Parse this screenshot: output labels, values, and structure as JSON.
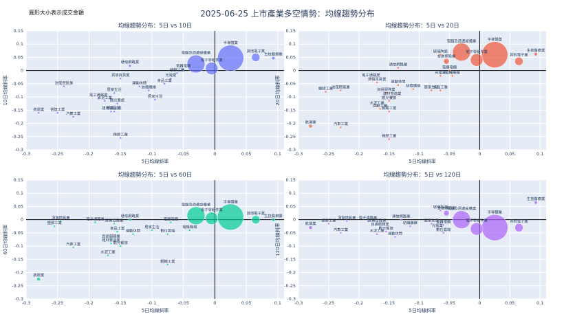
{
  "page": {
    "title": "2025-06-25 上市產業多空情勢：均線趨勢分布",
    "size_note": "圓形大小表示成交金額"
  },
  "colors": {
    "s10": "#636efa",
    "s20": "#ef553b",
    "s60": "#00cc96",
    "s120": "#ab63fa",
    "plot_bg": "#e5ecf6",
    "grid": "#ffffff",
    "axis_line": "#000000"
  },
  "chart_data": [
    {
      "type": "scatter",
      "title": "均線趨勢分布：5日 vs 10日",
      "xlabel": "5日均線斜率",
      "ylabel": "10日均線斜率",
      "xlim": [
        -0.3,
        0.11
      ],
      "ylim": [
        -0.3,
        0.15
      ],
      "xticks": [
        -0.3,
        -0.25,
        -0.2,
        -0.15,
        -0.1,
        -0.05,
        0,
        0.05,
        0.1
      ],
      "yticks": [
        -0.3,
        -0.25,
        -0.2,
        -0.15,
        -0.1,
        -0.05,
        0,
        0.05,
        0.1,
        0.15
      ],
      "color_key": "s10",
      "points": [
        {
          "x": 0.093,
          "y": 0.047,
          "r": 2.4,
          "label": "生技醫療業"
        },
        {
          "x": 0.065,
          "y": 0.05,
          "r": 6,
          "label": "其他電子業"
        },
        {
          "x": 0.025,
          "y": 0.047,
          "r": 19,
          "label": "半導體業"
        },
        {
          "x": -0.03,
          "y": 0.025,
          "r": 13,
          "label": "電腦及週邊設備業"
        },
        {
          "x": -0.005,
          "y": 0.008,
          "r": 9,
          "label": "電子零組件業"
        },
        {
          "x": -0.135,
          "y": 0.018,
          "r": 2,
          "label": "通信網路業"
        },
        {
          "x": -0.15,
          "y": -0.03,
          "r": 1.6,
          "label": "貿易百貨業"
        },
        {
          "x": -0.05,
          "y": 0.005,
          "r": 1.6,
          "label": "電器電纜"
        },
        {
          "x": -0.06,
          "y": -0.01,
          "r": 1.6,
          "label": "塑膠工業"
        },
        {
          "x": -0.07,
          "y": -0.03,
          "r": 1.6,
          "label": "光電業"
        },
        {
          "x": -0.08,
          "y": -0.05,
          "r": 1.6,
          "label": "食品工業"
        },
        {
          "x": -0.12,
          "y": -0.06,
          "r": 1.6,
          "label": "運動休閒"
        },
        {
          "x": -0.105,
          "y": -0.075,
          "r": 1.6,
          "label": "紡織纖維"
        },
        {
          "x": -0.24,
          "y": -0.06,
          "r": 1.6,
          "label": "油電燃氣業"
        },
        {
          "x": -0.16,
          "y": -0.085,
          "r": 1.6,
          "label": "居家生活"
        },
        {
          "x": -0.185,
          "y": -0.105,
          "r": 1.6,
          "label": "電子通路業"
        },
        {
          "x": -0.175,
          "y": -0.115,
          "r": 1.6,
          "label": "水泥工業"
        },
        {
          "x": -0.155,
          "y": -0.125,
          "r": 1.6,
          "label": "觀光餐旅"
        },
        {
          "x": -0.095,
          "y": -0.11,
          "r": 1.6,
          "label": "居家生活"
        },
        {
          "x": -0.16,
          "y": -0.155,
          "r": 1.6,
          "label": "鋼鐵工業"
        },
        {
          "x": -0.165,
          "y": -0.155,
          "r": 1.6,
          "label": "建材營造業"
        },
        {
          "x": -0.28,
          "y": -0.16,
          "r": 1.6,
          "label": "航運業"
        },
        {
          "x": -0.25,
          "y": -0.16,
          "r": 1.6,
          "label": "營建工業"
        },
        {
          "x": -0.225,
          "y": -0.175,
          "r": 1.6,
          "label": "汽車工業"
        },
        {
          "x": -0.15,
          "y": -0.255,
          "r": 1.6,
          "label": "橡膠工業"
        }
      ]
    },
    {
      "type": "scatter",
      "title": "均線趨勢分布：5日 vs 20日",
      "xlabel": "5日均線斜率",
      "ylabel": "20日均線斜率",
      "xlim": [
        -0.3,
        0.11
      ],
      "ylim": [
        -0.3,
        0.15
      ],
      "xticks": [
        -0.3,
        -0.25,
        -0.2,
        -0.15,
        -0.1,
        -0.05,
        0,
        0.05,
        0.1
      ],
      "yticks": [
        -0.3,
        -0.25,
        -0.2,
        -0.15,
        -0.1,
        -0.05,
        0,
        0.05,
        0.1,
        0.15
      ],
      "color_key": "s20",
      "points": [
        {
          "x": 0.093,
          "y": 0.062,
          "r": 2.4,
          "label": "生技醫療業"
        },
        {
          "x": 0.065,
          "y": 0.035,
          "r": 6,
          "label": "其他電子業"
        },
        {
          "x": 0.025,
          "y": 0.06,
          "r": 19,
          "label": "半導體業"
        },
        {
          "x": -0.03,
          "y": 0.07,
          "r": 13,
          "label": "電腦及週邊設備業"
        },
        {
          "x": -0.005,
          "y": 0.04,
          "r": 9,
          "label": "電子零組件業"
        },
        {
          "x": -0.055,
          "y": 0.035,
          "r": 4,
          "label": "金融保險業"
        },
        {
          "x": -0.065,
          "y": 0.06,
          "r": 1.6,
          "label": "玻璃陶瓷"
        },
        {
          "x": -0.135,
          "y": 0.01,
          "r": 1.6,
          "label": "通信網路業"
        },
        {
          "x": -0.05,
          "y": 0.0,
          "r": 1.6,
          "label": "電器電纜"
        },
        {
          "x": -0.045,
          "y": -0.02,
          "r": 1.6,
          "label": "電機機械"
        },
        {
          "x": -0.065,
          "y": -0.02,
          "r": 1.6,
          "label": "光電業"
        },
        {
          "x": -0.18,
          "y": -0.03,
          "r": 1.6,
          "label": "電子通路業"
        },
        {
          "x": -0.17,
          "y": -0.045,
          "r": 1.6,
          "label": "貿易百貨業"
        },
        {
          "x": -0.135,
          "y": -0.055,
          "r": 1.6,
          "label": "運動休閒"
        },
        {
          "x": -0.11,
          "y": -0.07,
          "r": 1.6,
          "label": "紡織纖維"
        },
        {
          "x": -0.08,
          "y": -0.075,
          "r": 1.6,
          "label": "居家生活"
        },
        {
          "x": -0.065,
          "y": -0.075,
          "r": 1.6,
          "label": "食品工業"
        },
        {
          "x": -0.23,
          "y": -0.075,
          "r": 1.6,
          "label": "油電燃氣業"
        },
        {
          "x": -0.255,
          "y": -0.08,
          "r": 1.6,
          "label": "塑膠工業"
        },
        {
          "x": -0.155,
          "y": -0.085,
          "r": 1.6,
          "label": "資訊服務業"
        },
        {
          "x": -0.145,
          "y": -0.1,
          "r": 1.6,
          "label": "建材營造業"
        },
        {
          "x": -0.15,
          "y": -0.115,
          "r": 1.6,
          "label": "觀光餐旅"
        },
        {
          "x": -0.17,
          "y": -0.135,
          "r": 1.6,
          "label": "水泥工業"
        },
        {
          "x": -0.165,
          "y": -0.145,
          "r": 1.6,
          "label": "造紙工業"
        },
        {
          "x": -0.15,
          "y": -0.155,
          "r": 1.6,
          "label": "鋼鐵工業"
        },
        {
          "x": -0.28,
          "y": -0.21,
          "r": 2.6,
          "label": "航運業"
        },
        {
          "x": -0.23,
          "y": -0.215,
          "r": 1.6,
          "label": "汽車工業"
        },
        {
          "x": -0.15,
          "y": -0.26,
          "r": 1.6,
          "label": "橡膠工業"
        }
      ]
    },
    {
      "type": "scatter",
      "title": "均線趨勢分布：5日 vs 60日",
      "xlabel": "5日均線斜率",
      "ylabel": "60日均線斜率",
      "xlim": [
        -0.3,
        0.11
      ],
      "ylim": [
        -0.3,
        0.15
      ],
      "xticks": [
        -0.3,
        -0.25,
        -0.2,
        -0.15,
        -0.1,
        -0.05,
        0,
        0.05,
        0.1
      ],
      "yticks": [
        -0.3,
        -0.25,
        -0.2,
        -0.15,
        -0.1,
        -0.05,
        0,
        0.05,
        0.1,
        0.15
      ],
      "color_key": "s60",
      "points": [
        {
          "x": 0.093,
          "y": 0.0,
          "r": 2.4,
          "label": "生技醫療業"
        },
        {
          "x": 0.065,
          "y": 0.0,
          "r": 6,
          "label": "其他電子業"
        },
        {
          "x": 0.025,
          "y": 0.01,
          "r": 19,
          "label": "半導體業"
        },
        {
          "x": -0.03,
          "y": 0.015,
          "r": 13,
          "label": "電腦及週邊設備業"
        },
        {
          "x": -0.005,
          "y": 0.005,
          "r": 9,
          "label": "電子零組件業"
        },
        {
          "x": -0.135,
          "y": 0.0,
          "r": 2,
          "label": "通信網路業"
        },
        {
          "x": -0.245,
          "y": -0.005,
          "r": 1.6,
          "label": "油電燃氣業"
        },
        {
          "x": -0.255,
          "y": -0.025,
          "r": 1.6,
          "label": "塑膠工業"
        },
        {
          "x": -0.19,
          "y": -0.01,
          "r": 1.6,
          "label": "電子通路業"
        },
        {
          "x": -0.16,
          "y": -0.015,
          "r": 1.6,
          "label": "貿易百貨業"
        },
        {
          "x": -0.07,
          "y": -0.01,
          "r": 1.6,
          "label": "電器電纜"
        },
        {
          "x": -0.04,
          "y": -0.04,
          "r": 1.6,
          "label": "電機機械"
        },
        {
          "x": -0.1,
          "y": -0.04,
          "r": 1.6,
          "label": "居家生活"
        },
        {
          "x": -0.13,
          "y": -0.055,
          "r": 1.6,
          "label": "運動休閒"
        },
        {
          "x": -0.155,
          "y": -0.045,
          "r": 1.6,
          "label": "食品工業"
        },
        {
          "x": -0.075,
          "y": -0.055,
          "r": 1.6,
          "label": "數位雲端"
        },
        {
          "x": -0.165,
          "y": -0.075,
          "r": 1.6,
          "label": "資訊服務業"
        },
        {
          "x": -0.165,
          "y": -0.09,
          "r": 1.6,
          "label": "建材營造業"
        },
        {
          "x": -0.15,
          "y": -0.1,
          "r": 1.6,
          "label": "觀光餐旅"
        },
        {
          "x": -0.225,
          "y": -0.105,
          "r": 1.6,
          "label": "汽車工業"
        },
        {
          "x": -0.17,
          "y": -0.135,
          "r": 1.6,
          "label": "水泥工業"
        },
        {
          "x": -0.075,
          "y": -0.17,
          "r": 1.6,
          "label": "鋼鐵工業"
        },
        {
          "x": -0.28,
          "y": -0.225,
          "r": 2.6,
          "label": "航運業"
        }
      ]
    },
    {
      "type": "scatter",
      "title": "均線趨勢分布：5日 vs 120日",
      "xlabel": "5日均線斜率",
      "ylabel": "120日均線斜率",
      "xlim": [
        -0.3,
        0.11
      ],
      "ylim": [
        -0.3,
        0.15
      ],
      "xticks": [
        -0.3,
        -0.25,
        -0.2,
        -0.15,
        -0.1,
        -0.05,
        0,
        0.05,
        0.1
      ],
      "yticks": [
        -0.3,
        -0.25,
        -0.2,
        -0.15,
        -0.1,
        -0.05,
        0,
        0.05,
        0.1,
        0.15
      ],
      "color_key": "s120",
      "points": [
        {
          "x": 0.093,
          "y": 0.065,
          "r": 2.4,
          "label": "生技醫療業"
        },
        {
          "x": 0.065,
          "y": -0.03,
          "r": 6,
          "label": "其他電子業"
        },
        {
          "x": 0.025,
          "y": -0.03,
          "r": 19,
          "label": "半導體業"
        },
        {
          "x": -0.03,
          "y": 0.0,
          "r": 13,
          "label": "電腦及週邊設備業"
        },
        {
          "x": -0.005,
          "y": -0.035,
          "r": 9,
          "label": "電子零組件業"
        },
        {
          "x": -0.055,
          "y": 0.025,
          "r": 4,
          "label": "金融保險業"
        },
        {
          "x": -0.065,
          "y": 0.035,
          "r": 1.6,
          "label": "玻璃陶瓷"
        },
        {
          "x": -0.13,
          "y": 0.0,
          "r": 1.6,
          "label": "通信網路業"
        },
        {
          "x": -0.22,
          "y": -0.005,
          "r": 1.6,
          "label": "油電燃氣業"
        },
        {
          "x": -0.185,
          "y": -0.005,
          "r": 1.6,
          "label": "電子通路業"
        },
        {
          "x": -0.25,
          "y": -0.015,
          "r": 1.6,
          "label": "塑膠工業"
        },
        {
          "x": -0.17,
          "y": -0.015,
          "r": 1.6,
          "label": "貿易百貨業"
        },
        {
          "x": -0.08,
          "y": -0.015,
          "r": 1.6,
          "label": "居家生活"
        },
        {
          "x": -0.06,
          "y": -0.02,
          "r": 1.6,
          "label": "電器電纜"
        },
        {
          "x": -0.115,
          "y": -0.025,
          "r": 1.6,
          "label": "紡織纖維"
        },
        {
          "x": -0.165,
          "y": -0.03,
          "r": 1.6,
          "label": "資訊服務業"
        },
        {
          "x": -0.07,
          "y": -0.035,
          "r": 1.6,
          "label": "光電業"
        },
        {
          "x": -0.28,
          "y": -0.03,
          "r": 2.6,
          "label": "航運業"
        },
        {
          "x": -0.23,
          "y": -0.05,
          "r": 1.6,
          "label": "汽車工業"
        },
        {
          "x": -0.155,
          "y": -0.045,
          "r": 1.6,
          "label": "觀光餐旅"
        },
        {
          "x": -0.17,
          "y": -0.055,
          "r": 1.6,
          "label": "水泥工業"
        },
        {
          "x": -0.06,
          "y": -0.05,
          "r": 1.6,
          "label": "數位雲端"
        },
        {
          "x": -0.14,
          "y": -0.065,
          "r": 1.6,
          "label": "運動休閒"
        }
      ]
    }
  ]
}
